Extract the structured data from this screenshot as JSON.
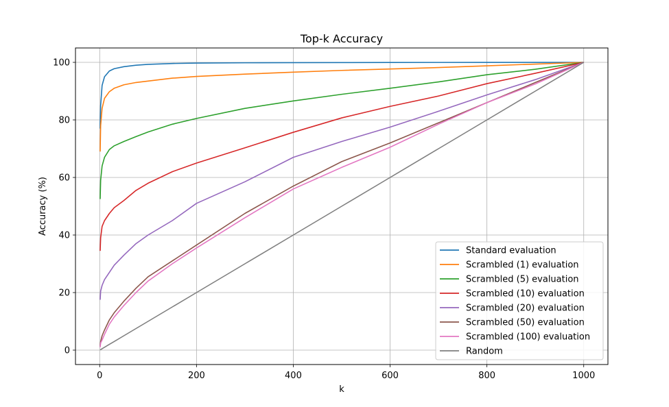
{
  "chart_data": {
    "type": "line",
    "title": "Top-k Accuracy",
    "xlabel": "k",
    "ylabel": "Accuracy (%)",
    "xlim": [
      -50,
      1050
    ],
    "ylim": [
      -5,
      105
    ],
    "xticks": [
      0,
      200,
      400,
      600,
      800,
      1000
    ],
    "yticks": [
      0,
      20,
      40,
      60,
      80,
      100
    ],
    "grid": true,
    "legend_position": "lower-right",
    "x": [
      1,
      2,
      5,
      10,
      20,
      30,
      50,
      75,
      100,
      150,
      200,
      300,
      400,
      500,
      600,
      700,
      800,
      900,
      1000
    ],
    "series": [
      {
        "name": "Standard evaluation",
        "color": "#1f77b4",
        "values": [
          77.0,
          85.0,
          92.0,
          95.0,
          97.0,
          97.8,
          98.5,
          99.0,
          99.3,
          99.6,
          99.75,
          99.85,
          99.9,
          99.93,
          99.95,
          99.97,
          99.98,
          99.99,
          100
        ]
      },
      {
        "name": "Scrambled (1) evaluation",
        "color": "#ff7f0e",
        "values": [
          69.0,
          78.0,
          84.0,
          87.5,
          89.8,
          91.0,
          92.2,
          93.0,
          93.5,
          94.5,
          95.1,
          95.9,
          96.6,
          97.2,
          97.7,
          98.2,
          98.8,
          99.4,
          100
        ]
      },
      {
        "name": "Scrambled (5) evaluation",
        "color": "#2ca02c",
        "values": [
          52.5,
          59.0,
          64.0,
          67.0,
          69.7,
          71.0,
          72.5,
          74.2,
          75.8,
          78.5,
          80.5,
          84.0,
          86.6,
          88.9,
          91.0,
          93.2,
          95.7,
          97.6,
          100
        ]
      },
      {
        "name": "Scrambled (10) evaluation",
        "color": "#d62728",
        "values": [
          34.5,
          39.0,
          43.0,
          45.0,
          47.5,
          49.5,
          52.0,
          55.5,
          58.0,
          62.0,
          65.0,
          70.3,
          75.7,
          80.7,
          84.7,
          88.3,
          92.6,
          96.2,
          100
        ]
      },
      {
        "name": "Scrambled (20) evaluation",
        "color": "#9467bd",
        "values": [
          17.5,
          20.5,
          22.5,
          24.5,
          27.0,
          29.5,
          33.0,
          37.0,
          40.0,
          45.0,
          51.0,
          58.5,
          67.0,
          72.5,
          77.5,
          83.0,
          88.7,
          94.0,
          100
        ]
      },
      {
        "name": "Scrambled (50) evaluation",
        "color": "#8c564b",
        "values": [
          1.5,
          3.0,
          5.0,
          7.0,
          10.5,
          13.0,
          17.0,
          21.5,
          25.5,
          31.0,
          36.5,
          47.5,
          57.0,
          65.5,
          72.0,
          79.0,
          86.0,
          93.0,
          100
        ]
      },
      {
        "name": "Scrambled (100) evaluation",
        "color": "#e377c2",
        "values": [
          1.0,
          2.5,
          3.5,
          5.5,
          9.0,
          11.5,
          15.5,
          20.0,
          24.0,
          30.0,
          35.5,
          46.0,
          56.0,
          63.5,
          70.5,
          78.5,
          86.0,
          92.5,
          100
        ]
      },
      {
        "name": "Random",
        "color": "#7f7f7f",
        "values": [
          0.1,
          0.2,
          0.5,
          1.0,
          2.0,
          3.0,
          5.0,
          7.5,
          10.0,
          15.0,
          20.0,
          30.0,
          40.0,
          50.0,
          60.0,
          70.0,
          80.0,
          90.0,
          100
        ]
      }
    ]
  }
}
